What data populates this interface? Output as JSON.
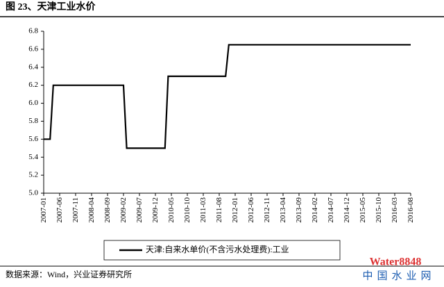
{
  "chart_data": {
    "type": "line",
    "title": "图 23、天津工业水价",
    "source": "数据来源：Wind，兴业证券研究所",
    "watermark": "中国水业网",
    "watermark_brand": "Water8848",
    "categories": [
      "2007-01",
      null,
      null,
      null,
      null,
      "2007-06",
      null,
      null,
      null,
      null,
      "2007-11",
      null,
      null,
      null,
      null,
      "2008-04",
      null,
      null,
      null,
      null,
      "2008-09",
      null,
      null,
      null,
      null,
      "2009-02",
      null,
      null,
      null,
      null,
      "2009-07",
      null,
      null,
      null,
      null,
      "2009-12",
      null,
      null,
      null,
      null,
      "2010-05",
      null,
      null,
      null,
      null,
      "2010-10",
      null,
      null,
      null,
      null,
      "2011-03",
      null,
      null,
      null,
      null,
      "2011-08",
      null,
      null,
      null,
      null,
      "2012-01",
      null,
      null,
      null,
      null,
      "2012-06",
      null,
      null,
      null,
      null,
      "2012-11",
      null,
      null,
      null,
      null,
      "2013-04",
      null,
      null,
      null,
      null,
      "2013-09",
      null,
      null,
      null,
      null,
      "2014-02",
      null,
      null,
      null,
      null,
      "2014-07",
      null,
      null,
      null,
      null,
      "2014-12",
      null,
      null,
      null,
      null,
      "2015-05",
      null,
      null,
      null,
      null,
      "2015-10",
      null,
      null,
      null,
      null,
      "2016-03",
      null,
      null,
      null,
      null,
      "2016-08"
    ],
    "series": [
      {
        "name": "天津:自来水单价(不含污水处理费):工业",
        "color": "#000000",
        "values": [
          5.6,
          5.6,
          5.6,
          6.2,
          6.2,
          6.2,
          6.2,
          6.2,
          6.2,
          6.2,
          6.2,
          6.2,
          6.2,
          6.2,
          6.2,
          6.2,
          6.2,
          6.2,
          6.2,
          6.2,
          6.2,
          6.2,
          6.2,
          6.2,
          6.2,
          6.2,
          5.5,
          5.5,
          5.5,
          5.5,
          5.5,
          5.5,
          5.5,
          5.5,
          5.5,
          5.5,
          5.5,
          5.5,
          5.5,
          6.3,
          6.3,
          6.3,
          6.3,
          6.3,
          6.3,
          6.3,
          6.3,
          6.3,
          6.3,
          6.3,
          6.3,
          6.3,
          6.3,
          6.3,
          6.3,
          6.3,
          6.3,
          6.3,
          6.65,
          6.65,
          6.65,
          6.65,
          6.65,
          6.65,
          6.65,
          6.65,
          6.65,
          6.65,
          6.65,
          6.65,
          6.65,
          6.65,
          6.65,
          6.65,
          6.65,
          6.65,
          6.65,
          6.65,
          6.65,
          6.65,
          6.65,
          6.65,
          6.65,
          6.65,
          6.65,
          6.65,
          6.65,
          6.65,
          6.65,
          6.65,
          6.65,
          6.65,
          6.65,
          6.65,
          6.65,
          6.65,
          6.65,
          6.65,
          6.65,
          6.65,
          6.65,
          6.65,
          6.65,
          6.65,
          6.65,
          6.65,
          6.65,
          6.65,
          6.65,
          6.65,
          6.65,
          6.65,
          6.65,
          6.65,
          6.65,
          6.65
        ]
      }
    ],
    "ylim": [
      5.0,
      6.8
    ],
    "yticks": [
      {
        "value": 5.0,
        "label": "5.0"
      },
      5.2,
      5.4,
      5.6,
      5.8,
      {
        "value": 6.0,
        "label": "6.0"
      },
      6.2,
      6.4,
      6.6,
      6.8
    ],
    "grid": false
  }
}
